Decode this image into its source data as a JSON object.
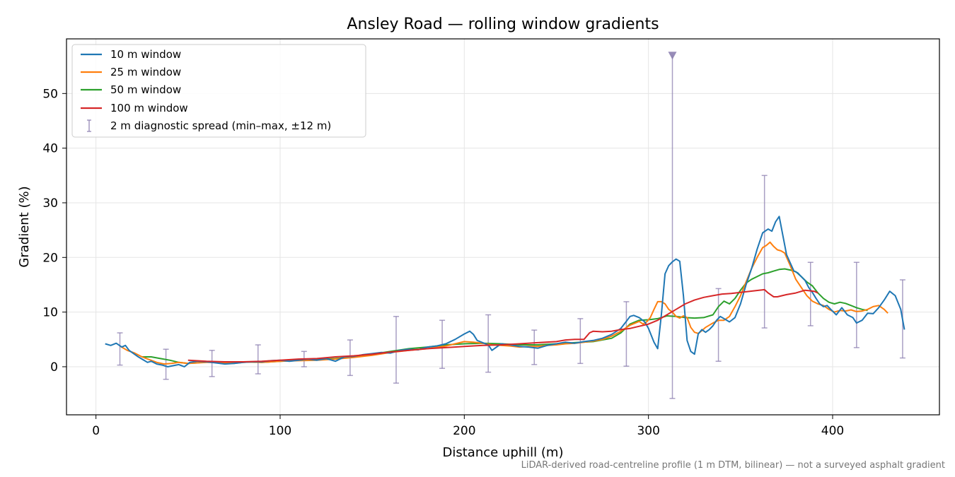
{
  "colors": {
    "w10": "#1f77b4",
    "w25": "#ff7f0e",
    "w50": "#2ca02c",
    "w100": "#d62728",
    "spread": "#8c7fb0",
    "grid": "#e5e5e5"
  },
  "chart_data": {
    "type": "line",
    "title": "Ansley Road — rolling window gradients",
    "xlabel": "Distance uphill (m)",
    "ylabel": "Gradient (%)",
    "xlim": [
      -16,
      458
    ],
    "ylim": [
      -8.8,
      60
    ],
    "xticks": [
      0,
      100,
      200,
      300,
      400
    ],
    "yticks": [
      0,
      10,
      20,
      30,
      40,
      50
    ],
    "grid": true,
    "legend_position": "top-left",
    "footnote": "LiDAR-derived road-centreline profile (1 m DTM, bilinear) — not a surveyed asphalt gradient",
    "series": [
      {
        "name": "10 m window",
        "color_key": "w10",
        "x": [
          5,
          8,
          11,
          14,
          16,
          18,
          20,
          23,
          25,
          28,
          30,
          33,
          36,
          39,
          42,
          45,
          48,
          51,
          55,
          60,
          65,
          70,
          75,
          80,
          85,
          90,
          95,
          100,
          105,
          110,
          115,
          120,
          125,
          130,
          135,
          140,
          145,
          150,
          155,
          160,
          165,
          170,
          175,
          180,
          185,
          190,
          195,
          200,
          203,
          205,
          207,
          210,
          213,
          215,
          220,
          225,
          230,
          235,
          240,
          245,
          250,
          255,
          260,
          265,
          270,
          275,
          280,
          285,
          288,
          290,
          292,
          295,
          298,
          300,
          303,
          305,
          307,
          309,
          311,
          313,
          315,
          317,
          319,
          321,
          323,
          325,
          327,
          329,
          331,
          333,
          335,
          337,
          339,
          341,
          344,
          347,
          350,
          353,
          356,
          359,
          362,
          365,
          367,
          369,
          371,
          373,
          375,
          377,
          379,
          381,
          383,
          385,
          387,
          389,
          391,
          393,
          395,
          397,
          399,
          402,
          405,
          408,
          411,
          413,
          416,
          419,
          422,
          425,
          428,
          431,
          434,
          437,
          439
        ],
        "values": [
          4.2,
          3.9,
          4.3,
          3.6,
          3.9,
          3.0,
          2.5,
          1.8,
          1.4,
          0.8,
          1.0,
          0.5,
          0.3,
          0.0,
          0.2,
          0.4,
          0.0,
          0.8,
          1.0,
          0.9,
          0.7,
          0.5,
          0.6,
          0.8,
          0.9,
          0.9,
          1.1,
          1.2,
          1.0,
          1.2,
          1.4,
          1.2,
          1.5,
          1.0,
          1.8,
          1.9,
          2.2,
          2.4,
          2.6,
          2.5,
          3.0,
          3.2,
          3.1,
          3.6,
          3.8,
          4.2,
          5.0,
          6.0,
          6.5,
          5.9,
          4.8,
          4.4,
          4.0,
          3.0,
          4.2,
          4.0,
          3.7,
          3.6,
          3.4,
          3.9,
          4.2,
          4.5,
          4.3,
          4.6,
          4.8,
          5.2,
          5.9,
          7.0,
          8.3,
          9.2,
          9.4,
          9.0,
          8.2,
          7.0,
          4.5,
          3.3,
          9.5,
          17.0,
          18.5,
          19.2,
          19.7,
          19.3,
          13.0,
          4.8,
          2.8,
          2.3,
          6.0,
          6.8,
          6.3,
          6.8,
          7.5,
          8.5,
          9.2,
          8.8,
          8.2,
          9.0,
          11.5,
          15.0,
          18.0,
          21.5,
          24.5,
          25.2,
          24.8,
          26.5,
          27.5,
          24.0,
          20.5,
          19.0,
          17.5,
          17.2,
          16.5,
          15.8,
          14.5,
          13.6,
          12.5,
          11.5,
          11.0,
          11.2,
          10.5,
          9.5,
          10.8,
          9.5,
          9.0,
          8.0,
          8.5,
          9.8,
          9.7,
          10.8,
          12.2,
          13.8,
          13.0,
          10.5,
          6.8
        ]
      },
      {
        "name": "25 m window",
        "color_key": "w25",
        "x": [
          13,
          17,
          21,
          25,
          29,
          33,
          37,
          41,
          45,
          50,
          55,
          60,
          65,
          70,
          75,
          80,
          85,
          90,
          100,
          110,
          120,
          130,
          140,
          150,
          160,
          170,
          180,
          190,
          195,
          200,
          205,
          210,
          215,
          220,
          225,
          230,
          235,
          240,
          245,
          250,
          255,
          260,
          265,
          270,
          275,
          280,
          285,
          290,
          295,
          297,
          299,
          301,
          303,
          305,
          307,
          309,
          311,
          313,
          315,
          317,
          319,
          321,
          323,
          325,
          327,
          329,
          331,
          333,
          335,
          338,
          341,
          344,
          347,
          350,
          353,
          356,
          359,
          362,
          364,
          366,
          368,
          370,
          372,
          374,
          377,
          380,
          383,
          386,
          389,
          392,
          395,
          398,
          401,
          404,
          407,
          410,
          413,
          416,
          419,
          422,
          425,
          428,
          430
        ],
        "values": [
          3.8,
          3.0,
          2.5,
          1.8,
          1.3,
          0.8,
          0.5,
          0.6,
          0.8,
          0.6,
          0.7,
          0.8,
          0.8,
          0.7,
          0.6,
          0.8,
          0.9,
          0.8,
          1.0,
          1.1,
          1.2,
          1.4,
          1.7,
          2.1,
          2.6,
          3.0,
          3.3,
          3.8,
          4.2,
          4.6,
          4.5,
          4.3,
          4.0,
          3.9,
          3.8,
          3.6,
          3.7,
          3.7,
          3.9,
          4.0,
          4.2,
          4.3,
          4.5,
          4.7,
          5.0,
          5.6,
          6.5,
          7.6,
          8.3,
          7.8,
          8.2,
          9.0,
          10.5,
          11.9,
          11.9,
          11.5,
          10.5,
          10.0,
          9.2,
          8.9,
          9.3,
          9.0,
          7.2,
          6.3,
          6.1,
          6.6,
          7.2,
          7.6,
          8.0,
          8.5,
          8.5,
          9.2,
          11.0,
          13.0,
          15.5,
          18.0,
          20.0,
          21.8,
          22.2,
          22.8,
          22.0,
          21.4,
          21.2,
          20.8,
          18.5,
          16.0,
          14.5,
          13.0,
          12.0,
          11.5,
          11.2,
          10.5,
          10.0,
          10.3,
          10.2,
          10.4,
          10.1,
          10.2,
          10.5,
          11.0,
          11.2,
          10.5,
          9.8
        ]
      },
      {
        "name": "50 m window",
        "color_key": "w50",
        "x": [
          25,
          30,
          35,
          40,
          45,
          50,
          55,
          60,
          65,
          70,
          80,
          90,
          100,
          110,
          120,
          130,
          140,
          150,
          160,
          170,
          180,
          190,
          200,
          210,
          220,
          230,
          240,
          250,
          260,
          270,
          280,
          285,
          290,
          295,
          300,
          305,
          310,
          315,
          320,
          325,
          330,
          335,
          338,
          341,
          344,
          347,
          350,
          353,
          356,
          359,
          362,
          365,
          368,
          371,
          374,
          377,
          380,
          383,
          386,
          389,
          392,
          395,
          398,
          401,
          404,
          407,
          410,
          413,
          416,
          419
        ],
        "values": [
          1.8,
          1.8,
          1.5,
          1.2,
          0.8,
          0.6,
          0.7,
          0.9,
          0.9,
          0.8,
          0.9,
          0.8,
          1.0,
          1.2,
          1.3,
          1.5,
          1.8,
          2.3,
          2.8,
          3.3,
          3.6,
          4.0,
          4.2,
          4.3,
          4.2,
          4.0,
          4.0,
          4.2,
          4.4,
          4.6,
          5.2,
          6.2,
          7.8,
          8.5,
          8.6,
          8.8,
          9.3,
          9.2,
          9.0,
          8.9,
          9.0,
          9.5,
          11.0,
          12.0,
          11.5,
          12.5,
          14.0,
          15.3,
          16.0,
          16.5,
          17.0,
          17.2,
          17.5,
          17.8,
          17.9,
          17.7,
          17.4,
          16.5,
          15.5,
          14.8,
          13.5,
          12.5,
          11.8,
          11.5,
          11.8,
          11.6,
          11.2,
          10.8,
          10.5,
          10.3
        ]
      },
      {
        "name": "100 m window",
        "color_key": "w100",
        "x": [
          50,
          60,
          70,
          80,
          90,
          100,
          110,
          120,
          130,
          140,
          150,
          160,
          170,
          180,
          190,
          200,
          210,
          220,
          230,
          240,
          250,
          255,
          260,
          265,
          268,
          270,
          275,
          280,
          285,
          290,
          295,
          300,
          305,
          310,
          315,
          320,
          325,
          330,
          335,
          340,
          345,
          350,
          355,
          360,
          363,
          365,
          368,
          370,
          375,
          380,
          385,
          390,
          392
        ],
        "values": [
          1.2,
          1.0,
          0.9,
          0.9,
          1.0,
          1.2,
          1.4,
          1.5,
          1.8,
          2.0,
          2.3,
          2.7,
          3.0,
          3.3,
          3.5,
          3.7,
          3.9,
          4.0,
          4.2,
          4.4,
          4.6,
          4.9,
          5.0,
          5.0,
          6.2,
          6.5,
          6.4,
          6.5,
          6.8,
          7.0,
          7.4,
          7.8,
          8.5,
          9.5,
          10.5,
          11.5,
          12.2,
          12.7,
          13.0,
          13.3,
          13.4,
          13.6,
          13.8,
          14.0,
          14.1,
          13.5,
          12.8,
          12.8,
          13.2,
          13.5,
          14.0,
          13.8,
          13.5
        ]
      }
    ],
    "spread": {
      "name": "2 m diagnostic spread (min–max, ±12 m)",
      "color_key": "spread",
      "points": [
        {
          "x": 13,
          "min": 0.3,
          "max": 6.2
        },
        {
          "x": 38,
          "min": -2.3,
          "max": 3.2
        },
        {
          "x": 63,
          "min": -1.8,
          "max": 3.0
        },
        {
          "x": 88,
          "min": -1.3,
          "max": 4.0
        },
        {
          "x": 113,
          "min": 0.0,
          "max": 2.8
        },
        {
          "x": 138,
          "min": -1.6,
          "max": 4.9
        },
        {
          "x": 163,
          "min": -3.0,
          "max": 9.2
        },
        {
          "x": 188,
          "min": -0.3,
          "max": 8.5
        },
        {
          "x": 213,
          "min": -1.0,
          "max": 9.5
        },
        {
          "x": 238,
          "min": 0.4,
          "max": 6.7
        },
        {
          "x": 263,
          "min": 0.6,
          "max": 8.8
        },
        {
          "x": 288,
          "min": 0.1,
          "max": 11.9
        },
        {
          "x": 313,
          "min": -5.8,
          "max": 57.0
        },
        {
          "x": 338,
          "min": 1.0,
          "max": 14.3
        },
        {
          "x": 363,
          "min": 7.1,
          "max": 35.0
        },
        {
          "x": 388,
          "min": 7.5,
          "max": 19.1
        },
        {
          "x": 413,
          "min": 3.5,
          "max": 19.1
        },
        {
          "x": 438,
          "min": 1.6,
          "max": 15.9
        }
      ]
    }
  }
}
